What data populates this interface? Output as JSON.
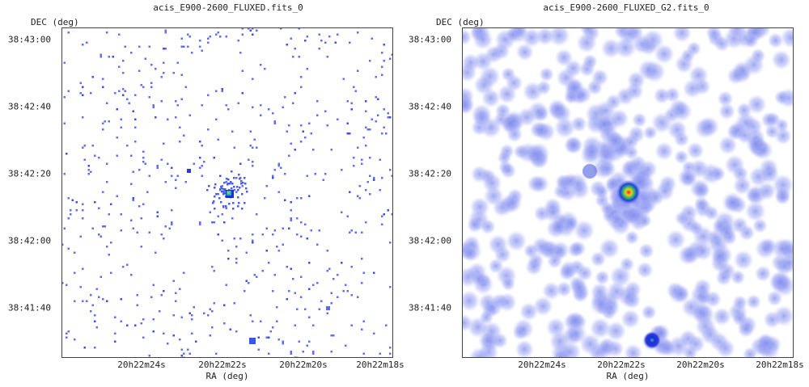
{
  "panels": [
    {
      "title": "acis_E900-2600_FLUXED.fits_0",
      "ylabel": "DEC (deg)",
      "xlabel": "RA (deg)",
      "yticks": [
        "38:43:00",
        "38:42:40",
        "38:42:20",
        "38:42:00",
        "38:41:40"
      ],
      "xticks": [
        "20h22m24s",
        "20h22m22s",
        "20h22m20s",
        "20h22m18s"
      ],
      "image_style": "sparse-pixels",
      "background": "#ffffff",
      "pixel_color": "#5f6fe8"
    },
    {
      "title": "acis_E900-2600_FLUXED_G2.fits_0",
      "ylabel": "DEC (deg)",
      "xlabel": "RA (deg)",
      "yticks": [
        "38:43:00",
        "38:42:40",
        "38:42:20",
        "38:42:00",
        "38:41:40"
      ],
      "xticks": [
        "20h22m24s",
        "20h22m22s",
        "20h22m20s",
        "20h22m18s"
      ],
      "image_style": "gaussian-smoothed",
      "background": "#ffffff",
      "pixel_color": "#7b86ee"
    }
  ],
  "chart_data": [
    {
      "type": "heatmap",
      "title": "acis_E900-2600_FLUXED.fits_0",
      "xlabel": "RA (deg)",
      "ylabel": "DEC (deg)",
      "x_tick_labels": [
        "20h22m24s",
        "20h22m22s",
        "20h22m20s",
        "20h22m18s"
      ],
      "y_tick_labels": [
        "38:43:00",
        "38:42:40",
        "38:42:20",
        "38:42:00",
        "38:41:40"
      ],
      "colormap": "white-blue-green-yellow-red",
      "bright_sources": [
        {
          "ra": "20h22m22.2s",
          "dec": "38:42:15",
          "peak": "high"
        },
        {
          "ra": "20h22m21.3s",
          "dec": "38:41:32",
          "peak": "medium"
        }
      ]
    },
    {
      "type": "heatmap",
      "title": "acis_E900-2600_FLUXED_G2.fits_0",
      "xlabel": "RA (deg)",
      "ylabel": "DEC (deg)",
      "x_tick_labels": [
        "20h22m24s",
        "20h22m22s",
        "20h22m20s",
        "20h22m18s"
      ],
      "y_tick_labels": [
        "38:43:00",
        "38:42:40",
        "38:42:20",
        "38:42:00",
        "38:41:40"
      ],
      "colormap": "white-blue-green-yellow-red",
      "bright_sources": [
        {
          "ra": "20h22m22.2s",
          "dec": "38:42:15",
          "peak": "high"
        },
        {
          "ra": "20h22m21.3s",
          "dec": "38:41:32",
          "peak": "medium"
        },
        {
          "ra": "20h22m23.2s",
          "dec": "38:42:21",
          "peak": "low"
        }
      ]
    }
  ]
}
